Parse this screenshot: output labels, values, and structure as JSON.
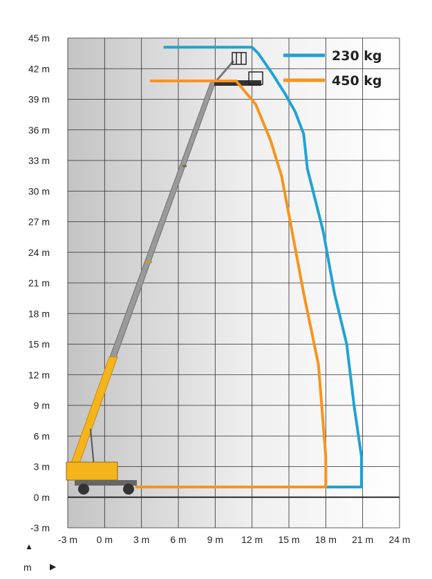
{
  "chart_data": {
    "type": "line",
    "title": "",
    "xlabel": "",
    "ylabel": "",
    "xlim": [
      -3,
      24
    ],
    "ylim": [
      -3,
      45
    ],
    "x_ticks": [
      -3,
      0,
      3,
      6,
      9,
      12,
      15,
      18,
      21,
      24
    ],
    "y_ticks": [
      -3,
      0,
      3,
      6,
      9,
      12,
      15,
      18,
      21,
      24,
      27,
      30,
      33,
      36,
      39,
      42,
      45
    ],
    "x_tick_labels": [
      "-3 m",
      "0 m",
      "3 m",
      "6 m",
      "9 m",
      "12 m",
      "15 m",
      "18 m",
      "21 m",
      "24 m"
    ],
    "y_tick_labels": [
      "-3 m",
      "0 m",
      "3 m",
      "6 m",
      "9 m",
      "12 m",
      "15 m",
      "18 m",
      "21 m",
      "24 m",
      "27 m",
      "30 m",
      "33 m",
      "36 m",
      "39 m",
      "42 m",
      "45 m"
    ],
    "grid": true,
    "legend_position": "top-right",
    "series": [
      {
        "name": "230 kg",
        "color": "#1fa3d4",
        "points": [
          [
            4.8,
            44.1
          ],
          [
            12.0,
            44.1
          ],
          [
            12.5,
            43.5
          ],
          [
            13.6,
            41.6
          ],
          [
            14.7,
            39.5
          ],
          [
            15.5,
            37.8
          ],
          [
            16.2,
            35.6
          ],
          [
            16.5,
            32.2
          ],
          [
            17.8,
            26.0
          ],
          [
            18.7,
            20.0
          ],
          [
            19.7,
            15.0
          ],
          [
            20.3,
            9.0
          ],
          [
            20.9,
            4.0
          ],
          [
            20.9,
            1.0
          ],
          [
            18.0,
            1.0
          ]
        ]
      },
      {
        "name": "450 kg",
        "color": "#f7941d",
        "points": [
          [
            3.7,
            40.8
          ],
          [
            10.7,
            40.8
          ],
          [
            12.3,
            38.5
          ],
          [
            13.5,
            35.0
          ],
          [
            14.4,
            31.5
          ],
          [
            15.0,
            27.7
          ],
          [
            16.2,
            20.0
          ],
          [
            17.4,
            13.0
          ],
          [
            18.0,
            4.0
          ],
          [
            18.0,
            1.0
          ],
          [
            2.5,
            1.0
          ]
        ]
      }
    ]
  },
  "legend": [
    {
      "label": "230 kg",
      "color": "#1fa3d4"
    },
    {
      "label": "450 kg",
      "color": "#f7941d"
    }
  ],
  "axis_keys": {
    "y_key": "m",
    "y_arrow": "▲",
    "x_arrow": "▶"
  },
  "colors": {
    "boom_grey": "#9a9a9a",
    "boom_yellow": "#f5b41c",
    "shade_dark": "#c9c9c9",
    "shade_light": "#f4f4f4",
    "grid": "#2a2a2a"
  }
}
